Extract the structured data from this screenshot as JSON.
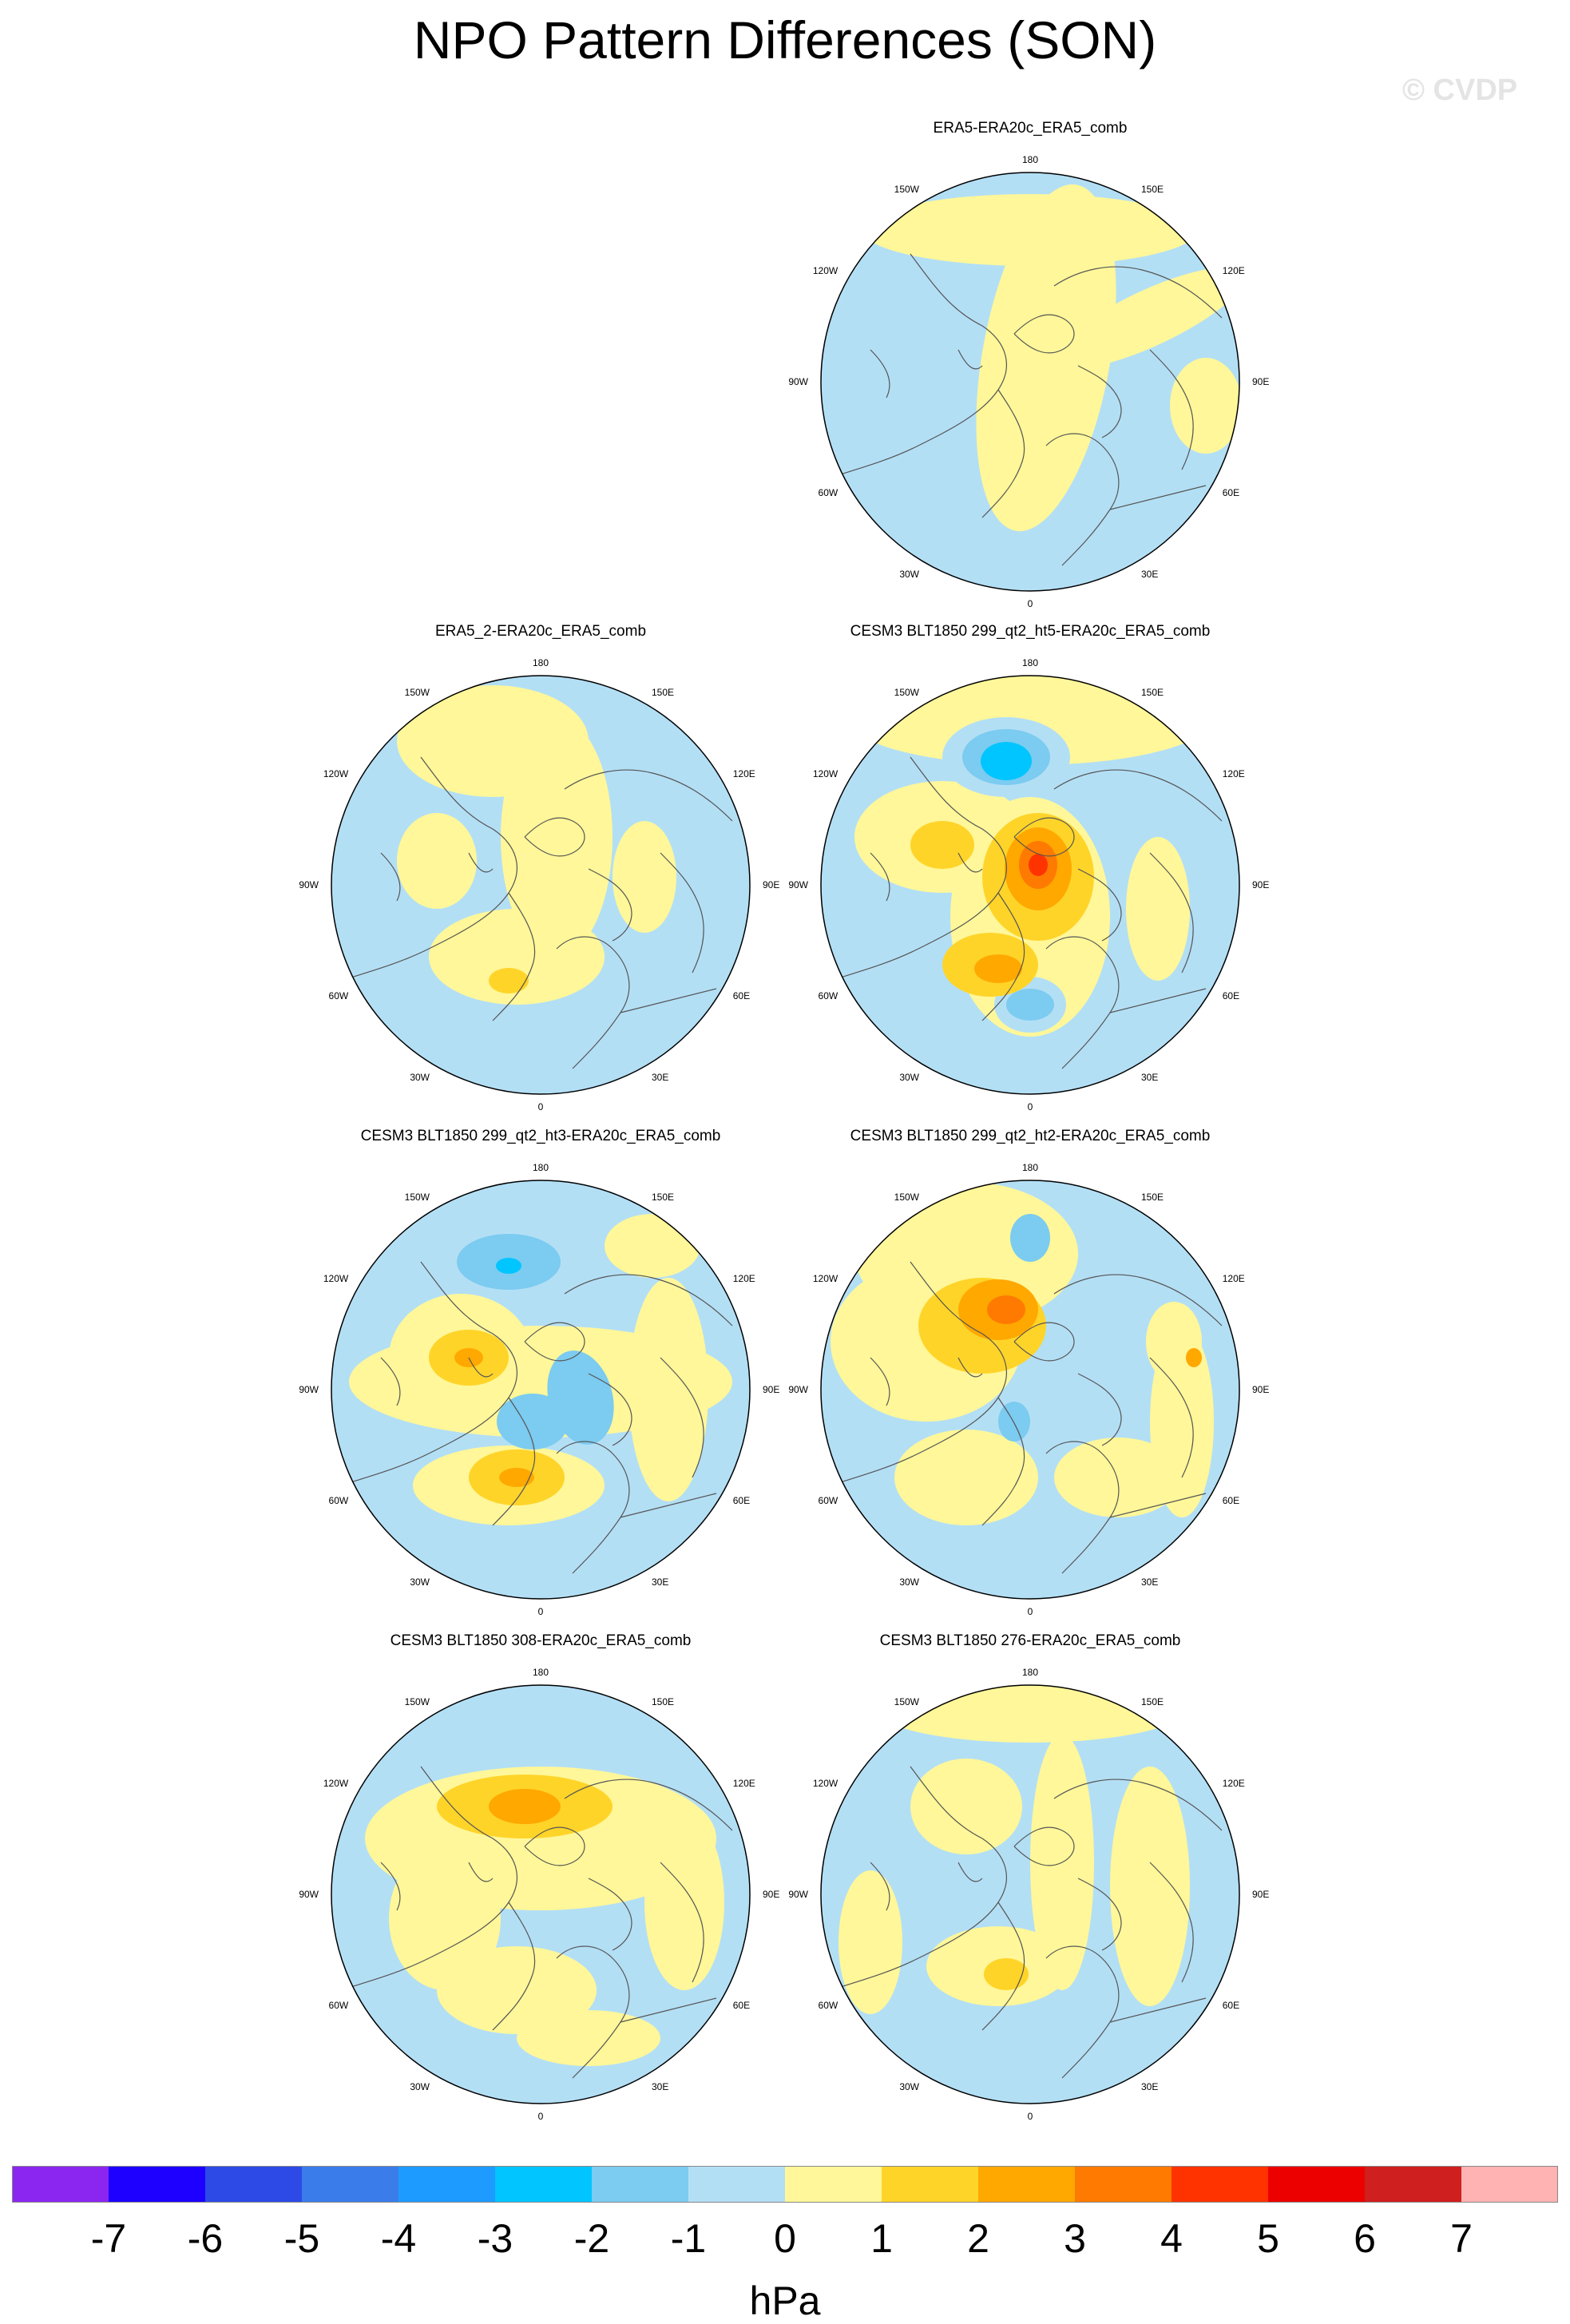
{
  "title": "NPO Pattern Differences (SON)",
  "watermark": "© CVDP",
  "map_panels": [
    {
      "title": "ERA5-ERA20c_ERA5_comb",
      "features": [
        {
          "color": "#fff799",
          "ellipses": [
            [
              0,
              -190,
              210,
              45,
              0
            ],
            [
              20,
              -30,
              80,
              220,
              10
            ],
            [
              150,
              -80,
              130,
              35,
              -25
            ],
            [
              220,
              30,
              45,
              60,
              0
            ]
          ]
        }
      ]
    },
    {
      "title": "ERA5_2-ERA20c_ERA5_comb",
      "features": [
        {
          "color": "#fff799",
          "ellipses": [
            [
              -60,
              -180,
              120,
              70,
              0
            ],
            [
              20,
              -60,
              70,
              150,
              0
            ],
            [
              -30,
              90,
              110,
              60,
              0
            ],
            [
              130,
              -10,
              40,
              70,
              0
            ],
            [
              -130,
              -30,
              50,
              60,
              0
            ]
          ]
        },
        {
          "color": "#ffd429",
          "ellipses": [
            [
              -40,
              120,
              25,
              16,
              0
            ]
          ]
        }
      ]
    },
    {
      "title": "CESM3 BLT1850 299_qt2_ht5-ERA20c_ERA5_comb",
      "features": [
        {
          "color": "#fff799",
          "ellipses": [
            [
              0,
              -210,
              230,
              60,
              0
            ],
            [
              -110,
              -60,
              110,
              70,
              0
            ],
            [
              0,
              40,
              100,
              150,
              0
            ],
            [
              160,
              30,
              40,
              90,
              0
            ]
          ]
        },
        {
          "color": "#b3dff5",
          "ellipses": [
            [
              -30,
              -160,
              80,
              50,
              0
            ],
            [
              0,
              150,
              45,
              35,
              0
            ]
          ]
        },
        {
          "color": "#7ccbf0",
          "ellipses": [
            [
              -30,
              -160,
              55,
              35,
              0
            ],
            [
              0,
              150,
              30,
              20,
              0
            ]
          ]
        },
        {
          "color": "#00c5ff",
          "ellipses": [
            [
              -30,
              -155,
              32,
              24,
              0
            ]
          ]
        },
        {
          "color": "#ffd429",
          "ellipses": [
            [
              10,
              -10,
              70,
              80,
              0
            ],
            [
              -50,
              100,
              60,
              40,
              0
            ],
            [
              -110,
              -50,
              40,
              30,
              0
            ]
          ]
        },
        {
          "color": "#ffa800",
          "ellipses": [
            [
              10,
              -20,
              42,
              52,
              0
            ],
            [
              -40,
              105,
              30,
              18,
              0
            ]
          ]
        },
        {
          "color": "#ff7a00",
          "ellipses": [
            [
              10,
              -25,
              24,
              30,
              0
            ]
          ]
        },
        {
          "color": "#ff3300",
          "ellipses": [
            [
              10,
              -25,
              12,
              14,
              0
            ]
          ]
        }
      ]
    },
    {
      "title": "CESM3 BLT1850 299_qt2_ht3-ERA20c_ERA5_comb",
      "features": [
        {
          "color": "#fff799",
          "ellipses": [
            [
              0,
              -10,
              240,
              70,
              0
            ],
            [
              -100,
              -40,
              90,
              80,
              0
            ],
            [
              -40,
              120,
              120,
              50,
              0
            ],
            [
              160,
              0,
              50,
              140,
              0
            ],
            [
              140,
              -180,
              60,
              40,
              0
            ]
          ]
        },
        {
          "color": "#7ccbf0",
          "ellipses": [
            [
              -40,
              -160,
              65,
              35,
              0
            ],
            [
              50,
              10,
              40,
              60,
              -15
            ],
            [
              -10,
              40,
              45,
              35,
              0
            ]
          ]
        },
        {
          "color": "#00c5ff",
          "ellipses": [
            [
              -40,
              -155,
              16,
              10,
              0
            ]
          ]
        },
        {
          "color": "#ffd429",
          "ellipses": [
            [
              -90,
              -40,
              50,
              35,
              0
            ],
            [
              -30,
              110,
              60,
              35,
              0
            ]
          ]
        },
        {
          "color": "#ffa800",
          "ellipses": [
            [
              -90,
              -40,
              18,
              12,
              0
            ],
            [
              -30,
              110,
              22,
              12,
              0
            ]
          ]
        }
      ]
    },
    {
      "title": "CESM3 BLT1850 299_qt2_ht2-ERA20c_ERA5_comb",
      "features": [
        {
          "color": "#fff799",
          "ellipses": [
            [
              -80,
              -170,
              140,
              90,
              0
            ],
            [
              -130,
              -60,
              120,
              100,
              0
            ],
            [
              -80,
              110,
              90,
              60,
              0
            ],
            [
              110,
              110,
              80,
              50,
              0
            ],
            [
              190,
              40,
              40,
              120,
              0
            ],
            [
              180,
              -60,
              35,
              50,
              0
            ]
          ]
        },
        {
          "color": "#7ccbf0",
          "ellipses": [
            [
              0,
              -190,
              25,
              30,
              0
            ],
            [
              -20,
              40,
              20,
              25,
              0
            ]
          ]
        },
        {
          "color": "#ffd429",
          "ellipses": [
            [
              -60,
              -80,
              80,
              60,
              0
            ]
          ]
        },
        {
          "color": "#ffa800",
          "ellipses": [
            [
              -40,
              -100,
              50,
              38,
              0
            ]
          ]
        },
        {
          "color": "#ff7a00",
          "ellipses": [
            [
              -30,
              -100,
              24,
              18,
              0
            ]
          ]
        },
        {
          "color": "#ffa800",
          "ellipses": [
            [
              205,
              -40,
              10,
              12,
              0
            ]
          ]
        }
      ]
    },
    {
      "title": "CESM3 BLT1850 308-ERA20c_ERA5_comb",
      "features": [
        {
          "color": "#fff799",
          "ellipses": [
            [
              0,
              -70,
              220,
              90,
              0
            ],
            [
              -120,
              30,
              70,
              90,
              0
            ],
            [
              -30,
              120,
              100,
              55,
              0
            ],
            [
              180,
              10,
              50,
              110,
              0
            ],
            [
              60,
              180,
              90,
              35,
              0
            ]
          ]
        },
        {
          "color": "#ffd429",
          "ellipses": [
            [
              -20,
              -110,
              110,
              40,
              0
            ]
          ]
        },
        {
          "color": "#ffa800",
          "ellipses": [
            [
              -20,
              -110,
              45,
              22,
              0
            ]
          ]
        }
      ]
    },
    {
      "title": "CESM3 BLT1850 276-ERA20c_ERA5_comb",
      "features": [
        {
          "color": "#fff799",
          "ellipses": [
            [
              0,
              -230,
              190,
              40,
              0
            ],
            [
              -80,
              -110,
              70,
              60,
              0
            ],
            [
              -40,
              90,
              90,
              50,
              0
            ],
            [
              40,
              -40,
              40,
              160,
              0
            ],
            [
              150,
              -10,
              50,
              150,
              0
            ],
            [
              -200,
              60,
              40,
              90,
              0
            ]
          ]
        },
        {
          "color": "#ffd429",
          "ellipses": [
            [
              -30,
              100,
              28,
              20,
              0
            ]
          ]
        }
      ]
    }
  ],
  "lon_labels": {
    "top": "180",
    "bottom": "0",
    "upper_left": "150W",
    "upper_right": "150E",
    "mid_upper_left": "120W",
    "mid_upper_right": "120E",
    "left": "90W",
    "right": "90E",
    "mid_lower_left": "60W",
    "mid_lower_right": "60E",
    "lower_left": "30W",
    "lower_right": "30E"
  },
  "colorbar": {
    "colors": [
      "#8b26f0",
      "#1d00ff",
      "#2d4ae6",
      "#3b7ceb",
      "#1e9bff",
      "#00c5ff",
      "#7ccbf0",
      "#b3dff5",
      "#fff799",
      "#ffd429",
      "#ffa800",
      "#ff7a00",
      "#ff3300",
      "#ec0000",
      "#d01f1f",
      "#ffb3b3"
    ],
    "ticks": [
      "-7",
      "-6",
      "-5",
      "-4",
      "-3",
      "-2",
      "-1",
      "0",
      "1",
      "2",
      "3",
      "4",
      "5",
      "6",
      "7"
    ],
    "unit": "hPa"
  }
}
